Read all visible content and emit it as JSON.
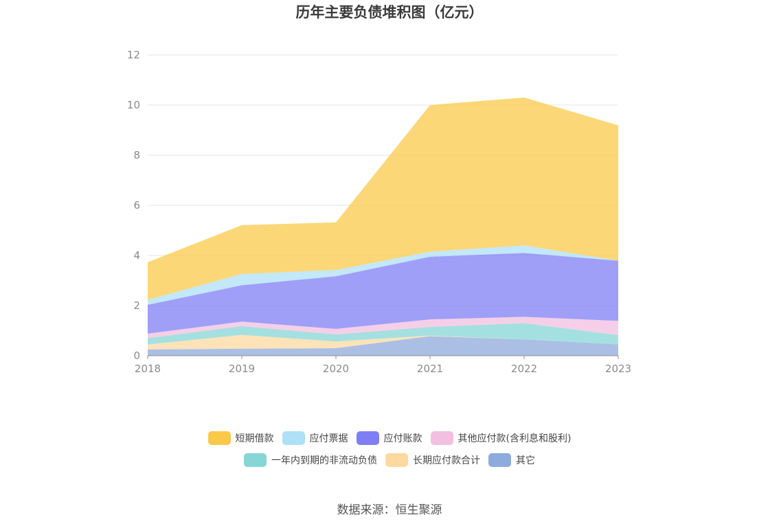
{
  "chart_data": {
    "type": "area",
    "stacked": true,
    "title": "历年主要负债堆积图（亿元）",
    "categories": [
      "2018",
      "2019",
      "2020",
      "2021",
      "2022",
      "2023"
    ],
    "ylim": [
      0,
      12
    ],
    "yticks": [
      "0",
      "2",
      "4",
      "6",
      "8",
      "10",
      "12"
    ],
    "grid": true,
    "legend_position": "bottom",
    "series": [
      {
        "name": "其它",
        "color": "#8faadc",
        "values": [
          0.25,
          0.28,
          0.3,
          0.78,
          0.65,
          0.45
        ]
      },
      {
        "name": "长期应付款合计",
        "color": "#fdd9a0",
        "values": [
          0.2,
          0.55,
          0.27,
          0.02,
          0.0,
          0.0
        ]
      },
      {
        "name": "一年内到期的非流动负债",
        "color": "#87d6d6",
        "values": [
          0.25,
          0.35,
          0.28,
          0.35,
          0.65,
          0.37
        ]
      },
      {
        "name": "其他应付款(含利息和股利)",
        "color": "#f2bfe0",
        "values": [
          0.18,
          0.18,
          0.22,
          0.3,
          0.25,
          0.57
        ]
      },
      {
        "name": "应付账款",
        "color": "#7f7ff5",
        "values": [
          1.15,
          1.45,
          2.1,
          2.5,
          2.55,
          2.4
        ]
      },
      {
        "name": "应付票据",
        "color": "#aee0f7",
        "values": [
          0.2,
          0.45,
          0.25,
          0.2,
          0.3,
          0.0
        ]
      },
      {
        "name": "短期借款",
        "color": "#fbc94a",
        "values": [
          1.5,
          1.95,
          1.9,
          5.85,
          5.9,
          5.4
        ]
      }
    ]
  },
  "legend_rows": [
    [
      {
        "label": "短期借款",
        "color": "#fbc94a"
      },
      {
        "label": "应付票据",
        "color": "#aee0f7"
      },
      {
        "label": "应付账款",
        "color": "#7f7ff5"
      },
      {
        "label": "其他应付款(含利息和股利)",
        "color": "#f2bfe0"
      }
    ],
    [
      {
        "label": "一年内到期的非流动负债",
        "color": "#87d6d6"
      },
      {
        "label": "长期应付款合计",
        "color": "#fdd9a0"
      },
      {
        "label": "其它",
        "color": "#8faadc"
      }
    ]
  ],
  "source": "数据来源：恒生聚源"
}
